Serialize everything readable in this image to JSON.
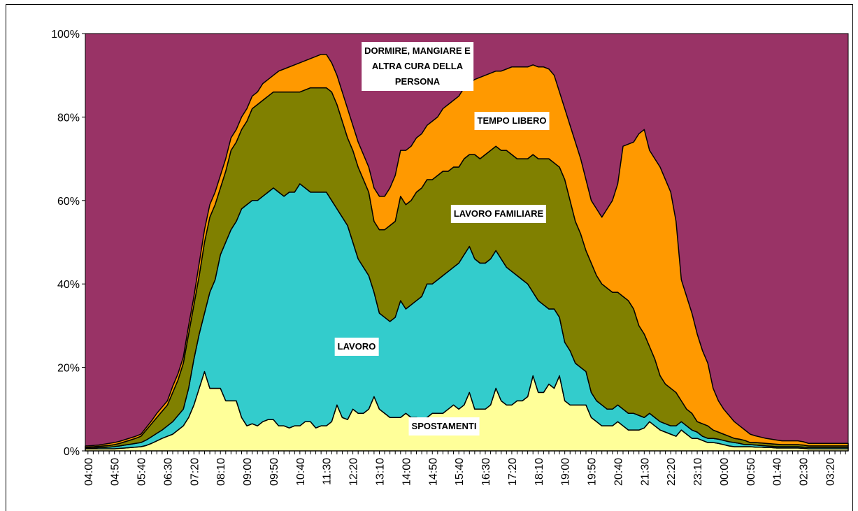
{
  "chart_data": {
    "type": "stacked_area",
    "categories": [
      "04:00",
      null,
      null,
      null,
      null,
      "04:50",
      null,
      null,
      null,
      null,
      "05:40",
      null,
      null,
      null,
      null,
      "06:30",
      null,
      null,
      null,
      null,
      "07:20",
      null,
      null,
      null,
      null,
      "08:10",
      null,
      null,
      null,
      null,
      "09:00",
      null,
      null,
      null,
      null,
      "09:50",
      null,
      null,
      null,
      null,
      "10:40",
      null,
      null,
      null,
      null,
      "11:30",
      null,
      null,
      null,
      null,
      "12:20",
      null,
      null,
      null,
      null,
      "13:10",
      null,
      null,
      null,
      null,
      "14:00",
      null,
      null,
      null,
      null,
      "14:50",
      null,
      null,
      null,
      null,
      "15:40",
      null,
      null,
      null,
      null,
      "16:30",
      null,
      null,
      null,
      null,
      "17:20",
      null,
      null,
      null,
      null,
      "18:10",
      null,
      null,
      null,
      null,
      "19:00",
      null,
      null,
      null,
      null,
      "19:50",
      null,
      null,
      null,
      null,
      "20:40",
      null,
      null,
      null,
      null,
      "21:30",
      null,
      null,
      null,
      null,
      "22:20",
      null,
      null,
      null,
      null,
      "23:10",
      null,
      null,
      null,
      null,
      "00:00",
      null,
      null,
      null,
      null,
      "00:50",
      null,
      null,
      null,
      null,
      "01:40",
      null,
      null,
      null,
      null,
      "02:30",
      null,
      null,
      null,
      null,
      "03:20",
      null,
      null,
      null
    ],
    "series": [
      {
        "name": "SPOSTAMENTI",
        "color": "#ffff99",
        "values": [
          0.5,
          0.5,
          0.5,
          0.5,
          0.5,
          0.5,
          0.6,
          0.7,
          0.8,
          0.9,
          1,
          1.3,
          1.8,
          2.4,
          3,
          3.5,
          4,
          5,
          6,
          8,
          11,
          15,
          19,
          15,
          15,
          15,
          12,
          12,
          12,
          8,
          6,
          6.5,
          6,
          7,
          7.5,
          7.5,
          6,
          6,
          5.5,
          6,
          6,
          7,
          7,
          5.5,
          6,
          6,
          7,
          11,
          8,
          7.5,
          10,
          9,
          9,
          10,
          13,
          10,
          9,
          8,
          8,
          8,
          9,
          8,
          8,
          7.5,
          8,
          9,
          9,
          9,
          10,
          11,
          10,
          11,
          14,
          10,
          10,
          10,
          11,
          15,
          12,
          11,
          11,
          12,
          12,
          13,
          18,
          14,
          14,
          16,
          15,
          18,
          12,
          11,
          11,
          11,
          11,
          8,
          7,
          6,
          6,
          6,
          7,
          6,
          5,
          5,
          5,
          5.5,
          7,
          6,
          5,
          4.5,
          4,
          3.5,
          5,
          4,
          3,
          3,
          2.5,
          2,
          2,
          1.8,
          1.5,
          1.2,
          1,
          1,
          1,
          1,
          0.9,
          0.9,
          0.8,
          0.8,
          0.7,
          0.7,
          0.7,
          0.7,
          0.7,
          0.6,
          0.5,
          0.5,
          0.5,
          0.5,
          0.5,
          0.5,
          0.5,
          0.5
        ]
      },
      {
        "name": "LAVORO",
        "color": "#33cccc",
        "values": [
          0.2,
          0.2,
          0.3,
          0.3,
          0.4,
          0.5,
          0.6,
          0.7,
          0.8,
          0.9,
          1,
          1.3,
          1.6,
          1.8,
          2,
          2.5,
          3,
          3.5,
          4,
          7,
          11,
          13,
          14,
          23,
          26,
          32,
          38,
          41,
          43,
          50,
          53,
          53.5,
          54,
          54,
          54.5,
          55.5,
          56,
          55,
          56.5,
          56,
          58,
          56,
          55,
          56.5,
          56,
          56,
          53,
          47,
          48,
          46.5,
          40,
          37,
          35,
          32,
          25,
          23,
          23,
          23,
          24,
          28,
          25,
          27,
          28,
          29.5,
          32,
          31,
          32,
          33,
          33,
          33,
          35,
          36,
          35,
          36,
          35,
          35,
          35,
          33,
          34,
          33,
          32,
          30,
          29,
          27,
          20,
          22,
          21,
          18,
          19,
          14,
          14,
          13,
          10,
          9,
          8,
          6,
          5,
          5,
          4,
          4,
          4,
          4,
          4,
          4,
          3.5,
          2.5,
          2,
          2,
          2,
          2,
          2,
          2.5,
          2,
          2,
          2,
          1.5,
          1,
          1,
          1,
          1,
          1,
          1,
          1,
          0.8,
          0.5,
          0.5,
          0.5,
          0.4,
          0.4,
          0.3,
          0.3,
          0.3,
          0.3,
          0.3,
          0.3,
          0.3,
          0.3,
          0.3,
          0.3,
          0.3,
          0.3,
          0.3,
          0.3,
          0.3
        ]
      },
      {
        "name": "LAVORO FAMILIARE",
        "color": "#808000",
        "values": [
          0.2,
          0.3,
          0.3,
          0.4,
          0.4,
          0.5,
          0.6,
          0.8,
          1,
          1.2,
          1.5,
          2.4,
          3.1,
          3.8,
          4.5,
          5,
          7,
          8.5,
          11,
          13,
          13,
          14,
          17,
          18,
          18,
          16,
          17,
          19,
          19,
          19,
          20,
          22,
          23,
          23,
          23,
          23,
          24,
          25,
          24,
          24,
          22,
          23.5,
          25,
          25,
          25,
          25,
          26,
          25,
          23,
          21,
          22,
          22,
          21,
          20,
          17,
          20,
          21,
          23,
          23,
          25,
          25,
          25,
          26,
          26,
          25,
          25,
          25,
          25,
          24,
          24,
          23,
          23,
          22,
          25,
          25,
          26,
          26,
          25,
          26,
          28,
          28,
          28,
          29,
          30,
          33,
          34,
          35,
          36,
          35,
          36,
          39,
          36,
          34,
          32,
          29,
          31,
          30,
          29,
          29,
          28,
          27,
          27,
          27,
          25,
          21.5,
          20,
          16,
          14,
          11,
          9.5,
          9,
          8,
          5,
          4,
          4,
          2.5,
          3,
          3,
          2,
          1.7,
          1.5,
          1.3,
          1,
          1,
          1,
          0.5,
          0.6,
          0.6,
          0.6,
          0.6,
          0.6,
          0.5,
          0.5,
          0.5,
          0.5,
          0.5,
          0.4,
          0.4,
          0.4,
          0.4,
          0.4,
          0.4,
          0.4,
          0.4
        ]
      },
      {
        "name": "TEMPO LIBERO",
        "color": "#ff9900",
        "values": [
          0.3,
          0.3,
          0.3,
          0.4,
          0.5,
          0.5,
          0.5,
          0.5,
          0.5,
          0.5,
          0.5,
          0.6,
          0.7,
          1,
          1,
          1,
          1.5,
          1.5,
          1.5,
          2,
          2,
          3,
          3,
          3,
          3,
          3,
          3,
          3,
          3,
          3,
          3,
          3,
          3,
          4,
          4,
          4,
          5,
          5.5,
          6,
          6.5,
          7,
          7,
          7,
          7.5,
          8,
          8,
          7,
          7,
          7,
          7,
          6,
          6,
          6,
          6,
          8,
          8,
          8,
          9,
          11,
          11,
          13,
          13,
          13,
          13,
          13,
          14,
          14,
          15,
          16,
          16,
          17,
          17,
          17,
          18,
          19.5,
          19,
          18.5,
          18,
          19,
          19.5,
          21,
          22,
          22,
          22,
          21.5,
          22,
          22,
          21.5,
          21,
          18,
          17,
          18,
          19,
          18,
          17,
          15,
          16,
          16,
          19,
          22,
          26,
          36,
          37.5,
          40,
          46,
          49,
          47,
          48,
          50,
          49,
          47,
          41,
          29,
          27,
          24,
          21,
          17.5,
          15,
          10,
          7.5,
          6,
          5,
          4,
          3.2,
          2.5,
          2,
          1.6,
          1.4,
          1.2,
          1.1,
          1,
          0.9,
          0.9,
          0.9,
          0.9,
          0.8,
          0.6,
          0.6,
          0.6,
          0.6,
          0.6,
          0.6,
          0.6,
          0.6
        ]
      }
    ],
    "remainder": {
      "name": "DORMIRE, MANGIARE E\nALTRA CURA DELLA\nPERSONA",
      "color": "#993366"
    },
    "ylim": [
      0,
      100
    ],
    "yticks": [
      {
        "value": 0,
        "label": "0%"
      },
      {
        "value": 20,
        "label": "20%"
      },
      {
        "value": 40,
        "label": "40%"
      },
      {
        "value": 60,
        "label": "60%"
      },
      {
        "value": 80,
        "label": "80%"
      },
      {
        "value": 100,
        "label": "100%"
      }
    ]
  }
}
